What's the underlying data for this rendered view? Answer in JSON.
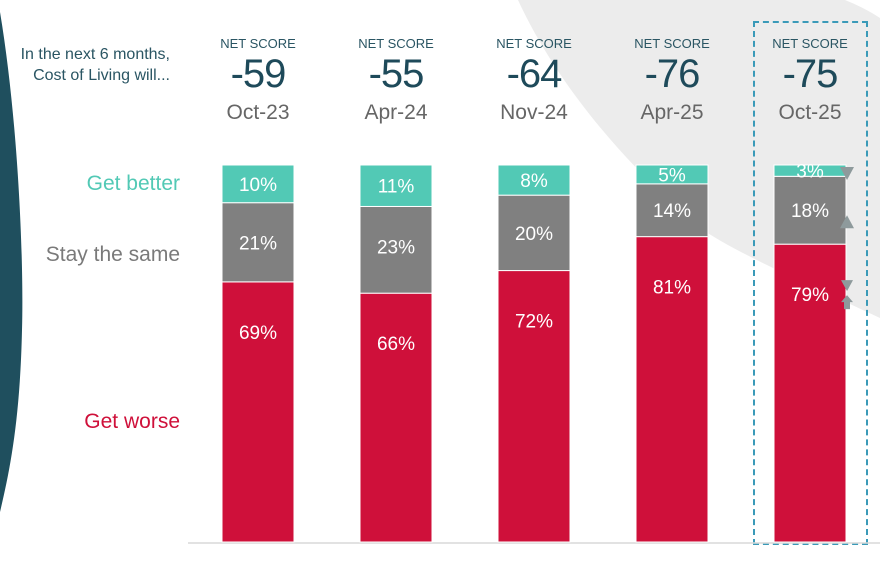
{
  "intro_text": "In the next 6 months, Cost of Living will...",
  "net_score_label": "NET SCORE",
  "colors": {
    "better": "#52c9b5",
    "same": "#808080",
    "worse": "#cf103a",
    "dark_teal": "#1f4f5e",
    "highlight": "#3a9ab8",
    "arrow": "#8e9a9c",
    "bg_shape": "#ececec"
  },
  "chart_data": {
    "type": "bar",
    "stacked": true,
    "title": "In the next 6 months, Cost of Living will...",
    "categories": [
      "Oct-23",
      "Apr-24",
      "Nov-24",
      "Apr-25",
      "Oct-25"
    ],
    "net_scores": [
      "-59",
      "-55",
      "-64",
      "-76",
      "-75"
    ],
    "series": [
      {
        "name": "Get worse",
        "key": "worse",
        "values": [
          69,
          66,
          72,
          81,
          79
        ],
        "labels": [
          "69%",
          "66%",
          "72%",
          "81%",
          "79%"
        ]
      },
      {
        "name": "Stay the same",
        "key": "same",
        "values": [
          21,
          23,
          20,
          14,
          18
        ],
        "labels": [
          "21%",
          "23%",
          "20%",
          "14%",
          "18%"
        ]
      },
      {
        "name": "Get better",
        "key": "better",
        "values": [
          10,
          11,
          8,
          5,
          3
        ],
        "labels": [
          "10%",
          "11%",
          "8%",
          "5%",
          "3%"
        ]
      }
    ],
    "ylim": [
      0,
      100
    ],
    "highlighted_category": "Oct-25",
    "change_indicators": [
      {
        "category": "Oct-25",
        "series": "Get better",
        "direction": "down"
      },
      {
        "category": "Oct-25",
        "series": "Stay the same",
        "direction": "up"
      },
      {
        "category": "Oct-25",
        "series": "Get worse",
        "direction": "down-up"
      }
    ]
  },
  "legend": {
    "better": "Get better",
    "same": "Stay the same",
    "worse": "Get worse"
  }
}
